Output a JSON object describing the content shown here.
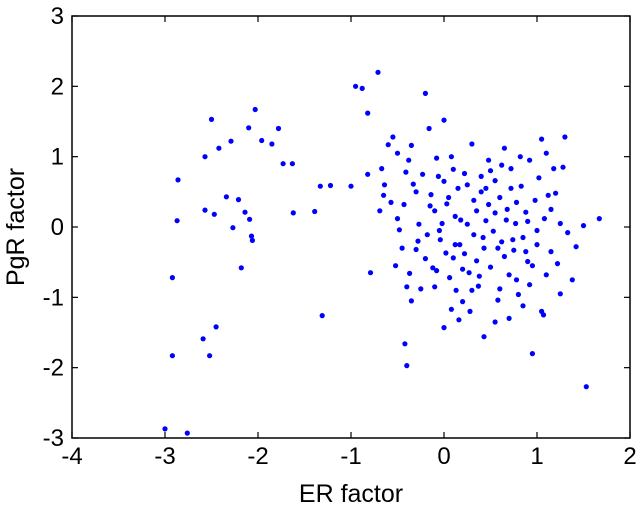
{
  "chart_data": {
    "type": "scatter",
    "title": "",
    "xlabel": "ER factor",
    "ylabel": "PgR factor",
    "xlim": [
      -4,
      2
    ],
    "ylim": [
      -3,
      3
    ],
    "xticks": [
      -4,
      -3,
      -2,
      -1,
      0,
      1,
      2
    ],
    "yticks": [
      -3,
      -2,
      -1,
      0,
      1,
      2,
      3
    ],
    "xtick_labels": [
      "-4",
      "-3",
      "-2",
      "-1",
      "0",
      "1",
      "2"
    ],
    "ytick_labels": [
      "-3",
      "-2",
      "-1",
      "0",
      "1",
      "2",
      "3"
    ],
    "grid": false,
    "marker_color": "#0000ff",
    "series": [
      {
        "points": [
          [
            -3.0,
            -2.87
          ],
          [
            -2.76,
            -2.93
          ],
          [
            -2.92,
            -1.83
          ],
          [
            -2.92,
            -0.72
          ],
          [
            -2.86,
            0.67
          ],
          [
            -2.87,
            0.09
          ],
          [
            -2.59,
            -1.59
          ],
          [
            -2.52,
            -1.83
          ],
          [
            -2.45,
            -1.42
          ],
          [
            -2.57,
            0.24
          ],
          [
            -2.57,
            1.0
          ],
          [
            -2.5,
            1.53
          ],
          [
            -2.47,
            0.18
          ],
          [
            -2.42,
            1.12
          ],
          [
            -2.34,
            0.43
          ],
          [
            -2.29,
            1.22
          ],
          [
            -2.27,
            -0.01
          ],
          [
            -2.21,
            0.39
          ],
          [
            -2.18,
            -0.58
          ],
          [
            -2.14,
            0.21
          ],
          [
            -2.09,
            0.11
          ],
          [
            -2.07,
            -0.13
          ],
          [
            -2.06,
            -0.19
          ],
          [
            -2.1,
            1.41
          ],
          [
            -2.03,
            1.67
          ],
          [
            -1.96,
            1.23
          ],
          [
            -1.85,
            1.18
          ],
          [
            -1.78,
            1.4
          ],
          [
            -1.73,
            0.9
          ],
          [
            -1.63,
            0.9
          ],
          [
            -1.62,
            0.2
          ],
          [
            -1.39,
            0.22
          ],
          [
            -1.33,
            0.58
          ],
          [
            -1.22,
            0.59
          ],
          [
            -1.31,
            -1.26
          ],
          [
            -1.0,
            0.58
          ],
          [
            -0.95,
            2.0
          ],
          [
            -0.88,
            1.97
          ],
          [
            -0.82,
            1.62
          ],
          [
            -0.82,
            0.75
          ],
          [
            -0.79,
            -0.65
          ],
          [
            -0.71,
            2.2
          ],
          [
            -0.69,
            0.23
          ],
          [
            -0.65,
            0.45
          ],
          [
            -0.67,
            0.83
          ],
          [
            -0.64,
            0.6
          ],
          [
            -0.6,
            1.17
          ],
          [
            -0.55,
            1.28
          ],
          [
            -0.5,
            1.05
          ],
          [
            -0.57,
            0.35
          ],
          [
            -0.52,
            -0.55
          ],
          [
            -0.48,
            -0.04
          ],
          [
            -0.43,
            0.32
          ],
          [
            -0.41,
            0.78
          ],
          [
            -0.4,
            -0.85
          ],
          [
            -0.37,
            -0.66
          ],
          [
            -0.35,
            1.16
          ],
          [
            -0.33,
            0.61
          ],
          [
            -0.3,
            -0.32
          ],
          [
            -0.27,
            0.04
          ],
          [
            -0.23,
            0.75
          ],
          [
            -0.2,
            1.9
          ],
          [
            -0.18,
            -0.11
          ],
          [
            -0.16,
            1.4
          ],
          [
            -0.14,
            0.46
          ],
          [
            -0.12,
            -0.58
          ],
          [
            -0.1,
            0.23
          ],
          [
            -0.08,
            0.98
          ],
          [
            -0.06,
            0.72
          ],
          [
            -0.04,
            -0.18
          ],
          [
            -0.02,
            0.05
          ],
          [
            0.0,
            1.52
          ],
          [
            0.02,
            -0.37
          ],
          [
            0.03,
            0.33
          ],
          [
            0.06,
            -0.72
          ],
          [
            0.08,
            1.0
          ],
          [
            0.1,
            -0.44
          ],
          [
            0.12,
            0.15
          ],
          [
            0.15,
            0.55
          ],
          [
            0.17,
            -0.25
          ],
          [
            0.2,
            -1.06
          ],
          [
            0.22,
            0.76
          ],
          [
            0.25,
            0.04
          ],
          [
            0.27,
            -0.65
          ],
          [
            0.3,
            1.18
          ],
          [
            0.32,
            -0.11
          ],
          [
            0.35,
            0.23
          ],
          [
            0.37,
            -0.84
          ],
          [
            0.4,
            0.5
          ],
          [
            0.43,
            -0.3
          ],
          [
            0.45,
            0.09
          ],
          [
            0.48,
            0.95
          ],
          [
            0.5,
            -0.57
          ],
          [
            0.53,
            -0.06
          ],
          [
            0.55,
            0.66
          ],
          [
            0.58,
            -1.04
          ],
          [
            0.6,
            0.42
          ],
          [
            0.62,
            -0.21
          ],
          [
            0.65,
            1.12
          ],
          [
            0.68,
            0.25
          ],
          [
            0.7,
            -0.68
          ],
          [
            0.72,
            0.83
          ],
          [
            0.75,
            -0.33
          ],
          [
            0.77,
            0.05
          ],
          [
            0.8,
            -0.96
          ],
          [
            0.83,
            0.58
          ],
          [
            0.85,
            -0.15
          ],
          [
            0.88,
            0.21
          ],
          [
            0.9,
            -0.49
          ],
          [
            0.92,
            0.95
          ],
          [
            0.95,
            -1.8
          ],
          [
            0.98,
            0.38
          ],
          [
            1.0,
            -0.25
          ],
          [
            1.02,
            0.7
          ],
          [
            1.05,
            -1.2
          ],
          [
            1.08,
            0.12
          ],
          [
            1.1,
            -0.68
          ],
          [
            1.12,
            0.45
          ],
          [
            1.15,
            -0.35
          ],
          [
            1.18,
            0.83
          ],
          [
            1.2,
            0.48
          ],
          [
            1.22,
            -0.52
          ],
          [
            1.25,
            0.05
          ],
          [
            1.3,
            1.28
          ],
          [
            1.33,
            -0.08
          ],
          [
            1.38,
            -0.75
          ],
          [
            1.42,
            -0.28
          ],
          [
            1.5,
            0.02
          ],
          [
            1.53,
            -2.27
          ],
          [
            1.67,
            0.12
          ],
          [
            -0.4,
            -1.97
          ],
          [
            -0.42,
            -1.66
          ],
          [
            0.0,
            -1.43
          ],
          [
            0.16,
            -1.32
          ],
          [
            0.43,
            -1.56
          ],
          [
            0.7,
            -1.3
          ],
          [
            1.07,
            -1.25
          ],
          [
            -0.35,
            -1.05
          ],
          [
            -0.25,
            -0.88
          ],
          [
            0.08,
            -1.17
          ],
          [
            0.28,
            -1.2
          ],
          [
            0.55,
            -1.35
          ],
          [
            0.85,
            -1.12
          ],
          [
            -0.45,
            -0.3
          ],
          [
            -0.2,
            -0.45
          ],
          [
            0.13,
            -0.9
          ],
          [
            0.35,
            -0.48
          ],
          [
            0.6,
            -0.88
          ],
          [
            0.92,
            -0.82
          ],
          [
            1.25,
            -0.95
          ],
          [
            -0.15,
            0.3
          ],
          [
            0.05,
            0.42
          ],
          [
            0.25,
            0.6
          ],
          [
            0.4,
            0.72
          ],
          [
            0.62,
            0.88
          ],
          [
            0.82,
            1.0
          ],
          [
            1.05,
            1.25
          ],
          [
            -0.05,
            -0.05
          ],
          [
            0.18,
            0.1
          ],
          [
            0.42,
            -0.15
          ],
          [
            0.65,
            -0.42
          ],
          [
            0.9,
            0.08
          ],
          [
            -0.28,
            -0.2
          ],
          [
            -0.08,
            -0.62
          ],
          [
            0.22,
            -0.38
          ],
          [
            0.48,
            0.32
          ],
          [
            0.72,
            0.55
          ],
          [
            1.0,
            -0.05
          ],
          [
            0.3,
            -0.9
          ],
          [
            0.55,
            0.2
          ],
          [
            0.78,
            -0.75
          ],
          [
            -0.5,
            0.12
          ],
          [
            -0.3,
            0.5
          ],
          [
            0.1,
            0.82
          ],
          [
            0.38,
            -0.7
          ],
          [
            0.67,
            0.1
          ],
          [
            0.95,
            -0.55
          ],
          [
            -0.1,
            -0.85
          ],
          [
            0.2,
            -0.6
          ],
          [
            0.45,
            0.55
          ],
          [
            0.74,
            -0.18
          ],
          [
            1.15,
            0.25
          ],
          [
            -0.38,
            0.95
          ],
          [
            0.0,
            0.65
          ],
          [
            0.32,
            0.38
          ],
          [
            0.58,
            -0.3
          ],
          [
            0.88,
            -0.35
          ],
          [
            1.28,
            0.85
          ],
          [
            0.12,
            -0.25
          ],
          [
            0.5,
            0.8
          ],
          [
            0.78,
            0.35
          ],
          [
            1.1,
            1.05
          ]
        ]
      }
    ]
  }
}
